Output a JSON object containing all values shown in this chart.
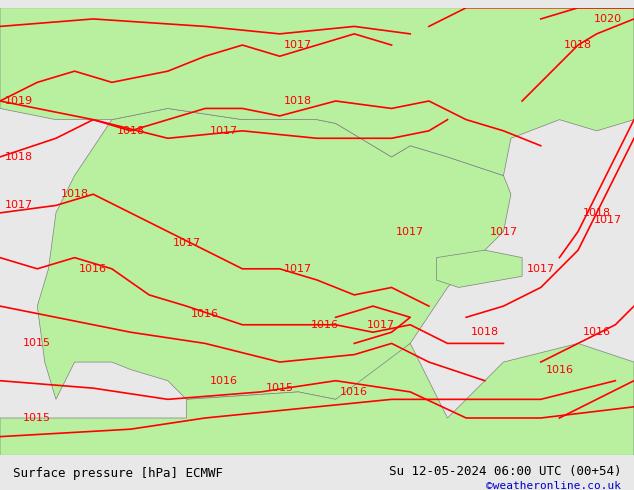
{
  "title": "Surface pressure [hPa] ECMWF",
  "date_label": "Su 12-05-2024 06:00 UTC (00+54)",
  "credit": "©weatheronline.co.uk",
  "bg_color": "#e8e8e8",
  "map_bg_color": "#d8d8d8",
  "land_color": "#b8f0a0",
  "sea_color": "#d8d8d8",
  "isobar_color": "#ff0000",
  "isobar_linewidth": 1.2,
  "label_color": "#ff0000",
  "label_fontsize": 8,
  "border_color": "#808080",
  "bottom_bar_color": "#ffffff",
  "bottom_bar_height": 0.055,
  "title_fontsize": 9,
  "date_fontsize": 9,
  "credit_color": "#0000cc",
  "credit_fontsize": 8,
  "figsize": [
    6.34,
    4.9
  ],
  "dpi": 100
}
